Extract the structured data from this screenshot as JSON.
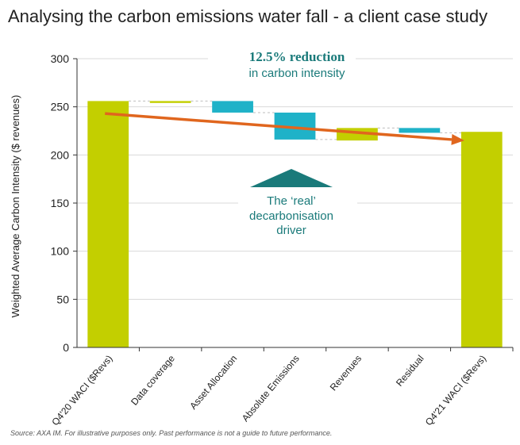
{
  "title": "Analysing the carbon emissions water fall - a client case study",
  "source": "Source: AXA IM. For illustrative purposes only. Past performance  is not a guide to future performance.",
  "annotations": {
    "reduction_bold": "12.5% reduction",
    "reduction_sub": "in carbon intensity",
    "driver_line1": "The ‘real’",
    "driver_line2": "decarbonisation",
    "driver_line3": "driver"
  },
  "colors": {
    "total": "#c3cf00",
    "increase": "#c3cf00",
    "decrease": "#1fb2c8",
    "trend_arrow": "#e0661e",
    "driver_triangle": "#1a7a7a",
    "annotation_text": "#1a7a7a",
    "grid": "#d9d9d9"
  },
  "chart_data": {
    "type": "bar",
    "subtype": "waterfall",
    "ylabel": "Weighted Average Carbon Intensity ($ revenues)",
    "xlabel": "",
    "ylim": [
      0,
      300
    ],
    "yticks": [
      0,
      50,
      100,
      150,
      200,
      250,
      300
    ],
    "grid": true,
    "categories": [
      "Q4'20 WACI ($Revs)",
      "Data coverage",
      "Asset Allocation",
      "Absolute Emissions",
      "Revenues",
      "Residual",
      "Q4'21 WACI ($Revs)"
    ],
    "bars": [
      {
        "category": "Q4'20 WACI ($Revs)",
        "kind": "total",
        "start": 0,
        "end": 256
      },
      {
        "category": "Data coverage",
        "kind": "increase",
        "start": 254,
        "end": 256
      },
      {
        "category": "Asset Allocation",
        "kind": "decrease",
        "start": 256,
        "end": 244
      },
      {
        "category": "Absolute Emissions",
        "kind": "decrease",
        "start": 244,
        "end": 216
      },
      {
        "category": "Revenues",
        "kind": "increase",
        "start": 215,
        "end": 228
      },
      {
        "category": "Residual",
        "kind": "decrease",
        "start": 228,
        "end": 223
      },
      {
        "category": "Q4'21 WACI ($Revs)",
        "kind": "total",
        "start": 0,
        "end": 224
      }
    ],
    "trend_arrow": {
      "from_category": "Q4'20 WACI ($Revs)",
      "from_value": 243,
      "to_category": "Q4'21 WACI ($Revs)",
      "to_value": 215
    }
  }
}
